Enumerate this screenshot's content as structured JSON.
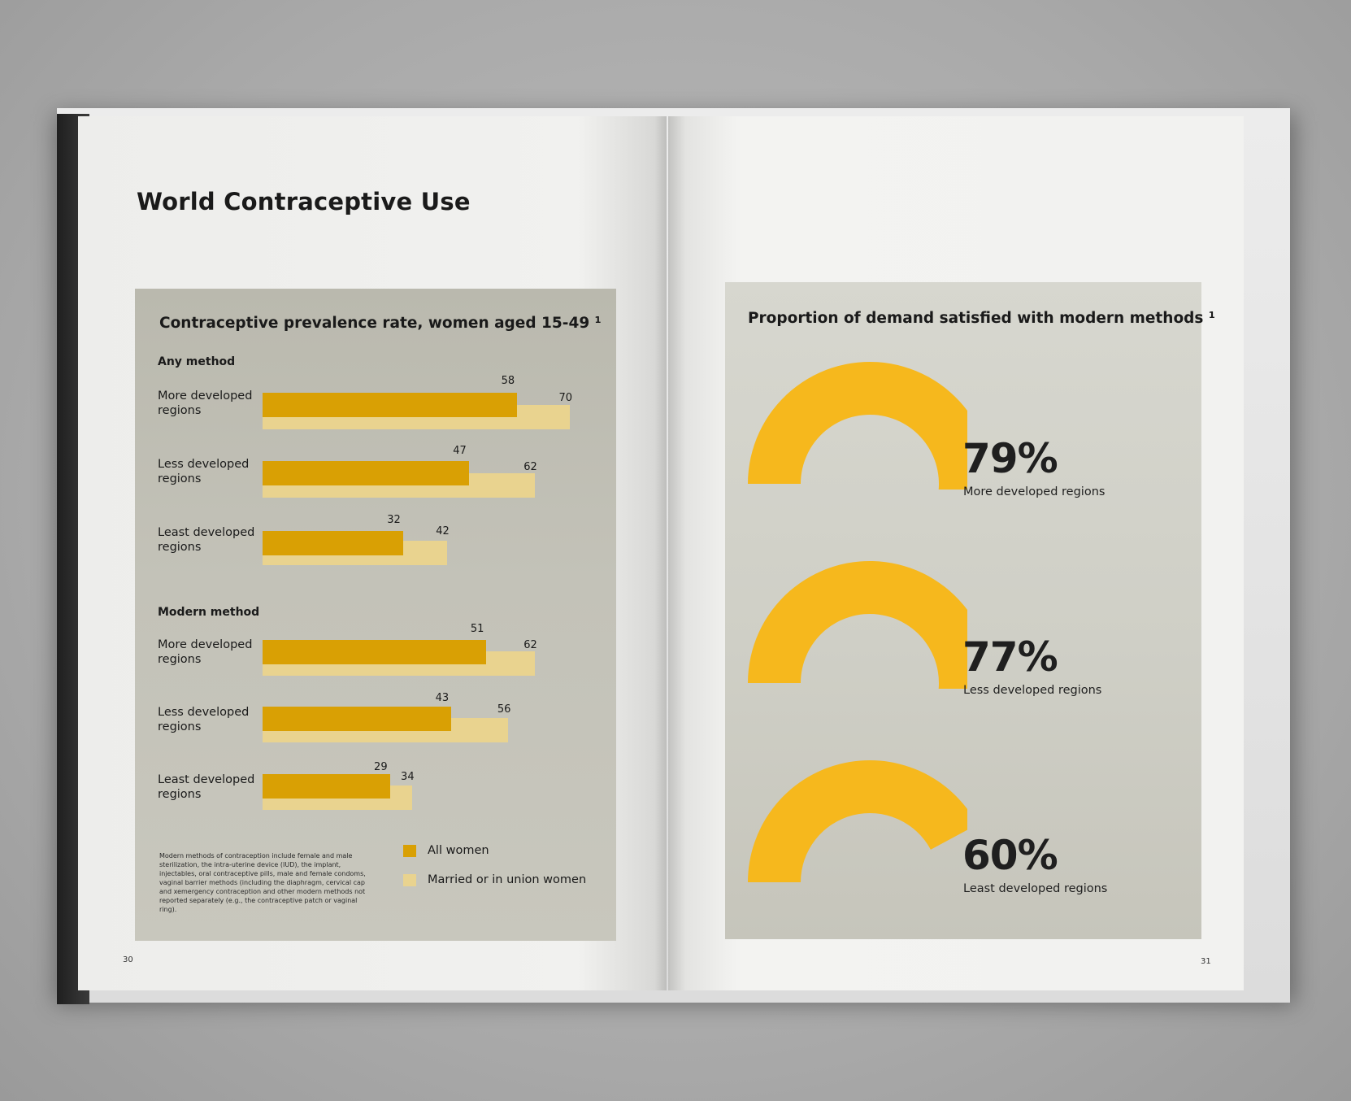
{
  "left_page": {
    "title": "World Contraceptive Use",
    "page_number": "30"
  },
  "right_page": {
    "page_number": "31"
  },
  "chart_data": [
    {
      "type": "bar",
      "orientation": "horizontal",
      "title": "Contraceptive prevalence rate, women aged 15-49 ¹",
      "groups": [
        {
          "name": "Any method",
          "categories": [
            "More developed regions",
            "Less developed regions",
            "Least developed regions"
          ],
          "series": [
            {
              "name": "All women",
              "values": [
                58,
                47,
                32
              ],
              "color": "#d9a004"
            },
            {
              "name": "Married or in union women",
              "values": [
                70,
                62,
                42
              ],
              "color": "#e9d38f"
            }
          ]
        },
        {
          "name": "Modern method",
          "categories": [
            "More developed regions",
            "Less developed regions",
            "Least developed regions"
          ],
          "series": [
            {
              "name": "All women",
              "values": [
                51,
                43,
                29
              ],
              "color": "#d9a004"
            },
            {
              "name": "Married or in union women",
              "values": [
                62,
                56,
                34
              ],
              "color": "#e9d38f"
            }
          ]
        }
      ],
      "legend": [
        {
          "label": "All women",
          "color": "#d9a004"
        },
        {
          "label": "Married or in union women",
          "color": "#e9d38f"
        }
      ],
      "legend_position": "bottom-right",
      "xlim": [
        0,
        70
      ],
      "grid": false,
      "footnote": "Modern methods of contraception include female and male sterilization, the intra-uterine device (IUD), the implant, injectables, oral contraceptive pills, male and female condoms, vaginal barrier methods (including the diaphragm, cervical cap and xemergency contraception and other modern methods not reported separately (e.g., the contraceptive patch or vaginal ring)."
    },
    {
      "type": "gauge",
      "title": "Proportion of demand satisfied with modern methods ¹",
      "items": [
        {
          "label": "More developed regions",
          "value": 79,
          "display": "79%"
        },
        {
          "label": "Less developed regions",
          "value": 77,
          "display": "77%"
        },
        {
          "label": "Least developed regions",
          "value": 60,
          "display": "60%"
        }
      ],
      "color": "#f6b81d",
      "max": 100
    }
  ]
}
